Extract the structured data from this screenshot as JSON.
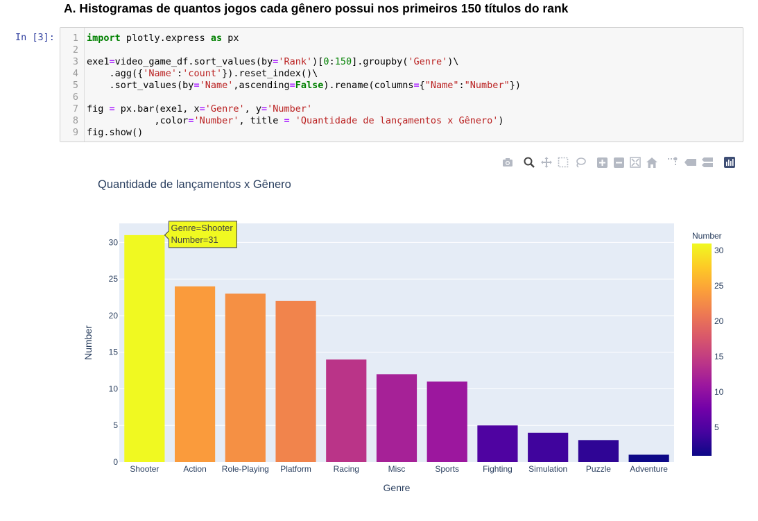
{
  "notebook": {
    "heading": "A. Histogramas de quantos jogos cada gênero possui nos primeiros 150 títulos do rank",
    "prompt": "In [3]:",
    "line_numbers": [
      "1",
      "2",
      "3",
      "4",
      "5",
      "6",
      "7",
      "8",
      "9"
    ],
    "code": {
      "l1": {
        "kw1": "import",
        "t1": " plotly.express ",
        "kw2": "as",
        "t2": " px"
      },
      "l3": {
        "a": "exe1",
        "eq": "=",
        "b": "video_game_df.sort_values(by",
        "eq2": "=",
        "s1": "'Rank'",
        "c": ")[",
        "n1": "0",
        "d": ":",
        "n2": "150",
        "e": "].groupby(",
        "s2": "'Genre'",
        "f": ")\\"
      },
      "l4": {
        "a": "    .agg({",
        "s1": "'Name'",
        "b": ":",
        "s2": "'count'",
        "c": "}).reset_index()\\"
      },
      "l5": {
        "a": "    .sort_values(by",
        "eq": "=",
        "s1": "'Name'",
        "b": ",ascending",
        "eq2": "=",
        "kw": "False",
        "c": ").rename(columns",
        "eq3": "=",
        "d": "{",
        "s2": "\"Name\"",
        "e": ":",
        "s3": "\"Number\"",
        "f": "})"
      },
      "l7": {
        "a": "fig ",
        "eq": "=",
        "b": " px.bar(exe1, x",
        "eq2": "=",
        "s1": "'Genre'",
        "c": ", y",
        "eq3": "=",
        "s2": "'Number'"
      },
      "l8": {
        "a": "            ,color",
        "eq": "=",
        "s1": "'Number'",
        "b": ", title ",
        "eq2": "=",
        "c": " ",
        "s2": "'Quantidade de lançamentos x Gênero'",
        "d": ")"
      },
      "l9": {
        "a": "fig.show()"
      }
    }
  },
  "modebar": {
    "icons": [
      "camera-icon",
      "zoom-icon",
      "pan-icon",
      "box-select-icon",
      "lasso-icon",
      "zoom-in-icon",
      "zoom-out-icon",
      "autoscale-icon",
      "reset-axes-icon",
      "spike-lines-icon",
      "hover-closest-icon",
      "hover-compare-icon",
      "plotly-logo-icon"
    ]
  },
  "chart_data": {
    "type": "bar",
    "title": "Quantidade de lançamentos x Gênero",
    "xlabel": "Genre",
    "ylabel": "Number",
    "categories": [
      "Shooter",
      "Action",
      "Role-Playing",
      "Platform",
      "Racing",
      "Misc",
      "Sports",
      "Fighting",
      "Simulation",
      "Puzzle",
      "Adventure"
    ],
    "values": [
      31,
      24,
      23,
      22,
      14,
      12,
      11,
      5,
      4,
      3,
      1
    ],
    "ylim": [
      0,
      32.6
    ],
    "yticks": [
      0,
      5,
      10,
      15,
      20,
      25,
      30
    ],
    "grid": true,
    "colorscale": "plasma",
    "colorbar": {
      "title": "Number",
      "range": [
        1,
        31
      ],
      "ticks": [
        5,
        10,
        15,
        20,
        25,
        30
      ]
    },
    "hover": {
      "line1": "Genre=Shooter",
      "line2": "Number=31"
    },
    "colors": {
      "plot_bg": "#e5ecf6",
      "text": "#2a3f5f",
      "grid": "#ffffff",
      "hover_bg": "#f0f921"
    }
  }
}
